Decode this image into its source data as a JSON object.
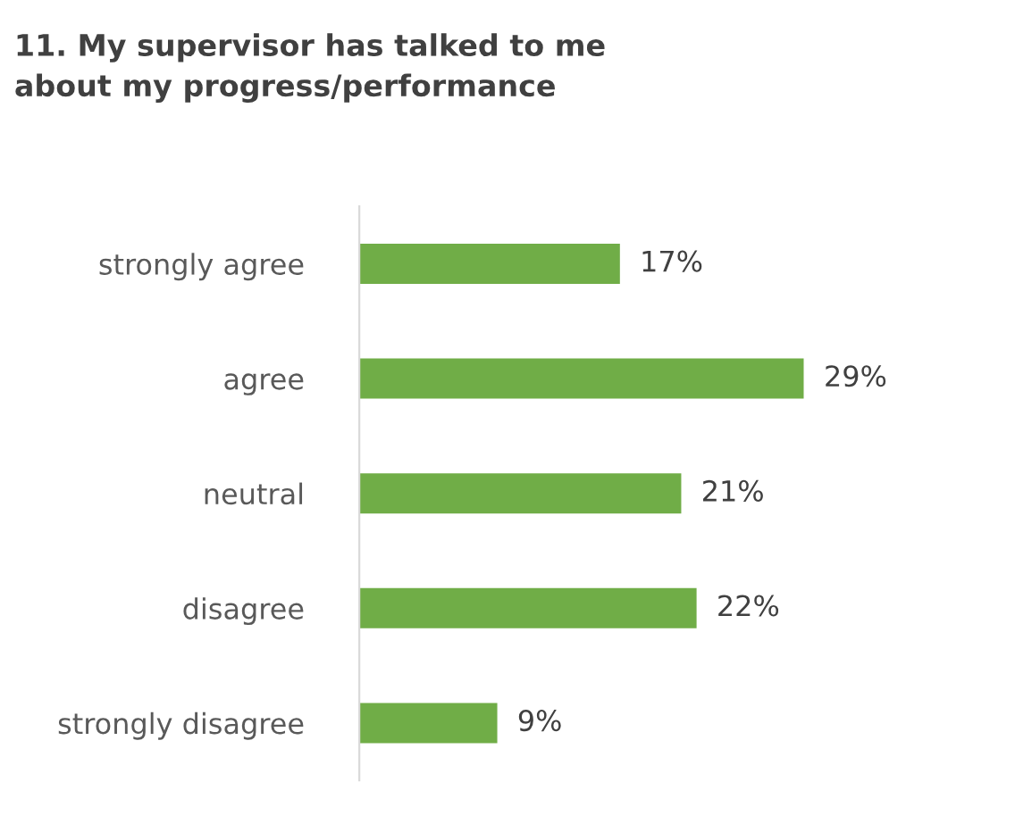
{
  "chart_data": {
    "type": "bar",
    "orientation": "horizontal",
    "title": "11. My supervisor has talked to me\nabout my progress/performance",
    "categories": [
      "strongly agree",
      "agree",
      "neutral",
      "disagree",
      "strongly disagree"
    ],
    "values": [
      17,
      29,
      21,
      22,
      9
    ],
    "value_labels": [
      "17%",
      "29%",
      "21%",
      "22%",
      "9%"
    ],
    "color": "#70ad47",
    "grid": false,
    "legend": false
  }
}
